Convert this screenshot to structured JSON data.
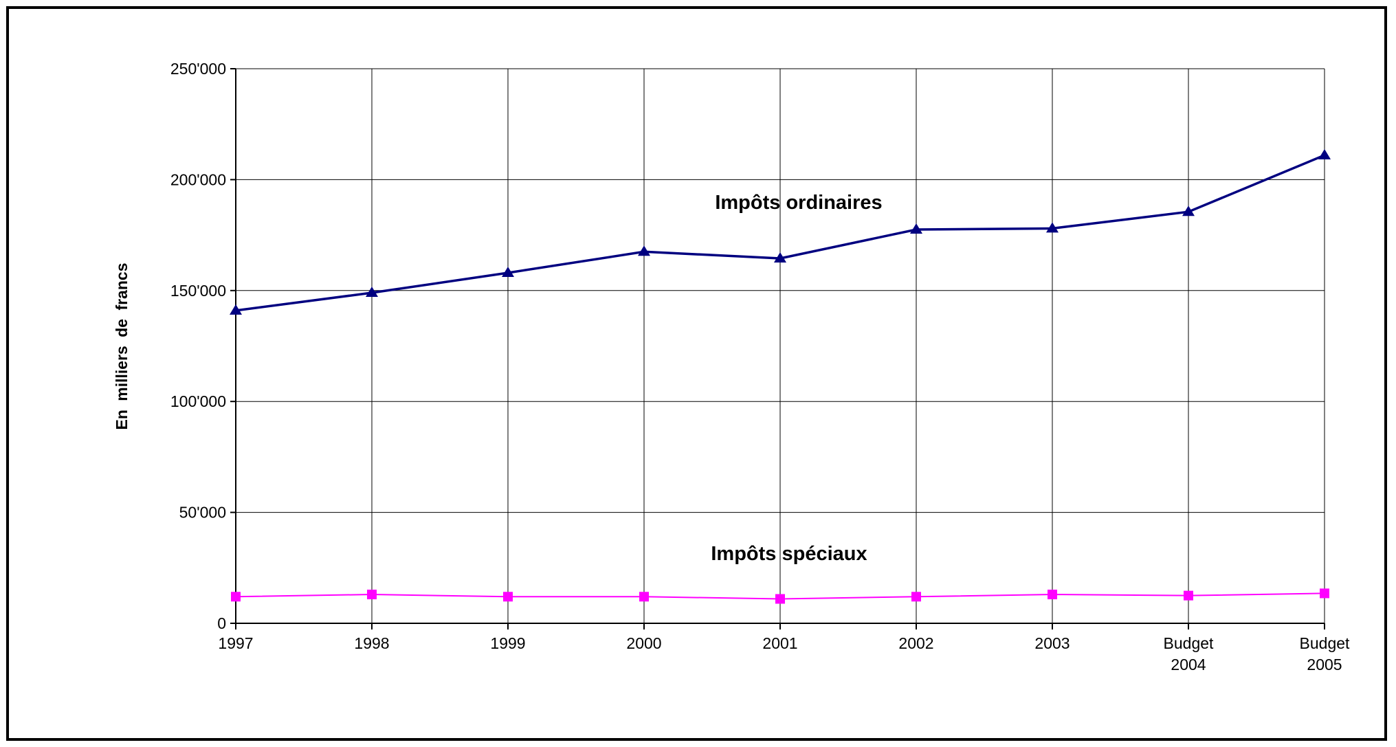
{
  "chart_data": {
    "type": "line",
    "ylabel": "En milliers de francs",
    "ylim": [
      0,
      250000
    ],
    "yticks": [
      0,
      50000,
      100000,
      150000,
      200000,
      250000
    ],
    "ytick_labels": [
      "0",
      "50'000",
      "100'000",
      "150'000",
      "200'000",
      "250'000"
    ],
    "categories": [
      [
        "1997"
      ],
      [
        "1998"
      ],
      [
        "1999"
      ],
      [
        "2000"
      ],
      [
        "2001"
      ],
      [
        "2002"
      ],
      [
        "2003"
      ],
      [
        "Budget",
        "2004"
      ],
      [
        "Budget",
        "2005"
      ]
    ],
    "grid": true,
    "series": [
      {
        "name": "Impôts ordinaires",
        "color": "#000080",
        "marker": "triangle",
        "values": [
          141000,
          149000,
          158000,
          167500,
          164500,
          177500,
          178000,
          185500,
          211000
        ]
      },
      {
        "name": "Impôts spéciaux",
        "color": "#FF00FF",
        "marker": "square",
        "values": [
          12000,
          13000,
          12000,
          12000,
          11000,
          12000,
          13000,
          12500,
          13500
        ]
      }
    ]
  }
}
